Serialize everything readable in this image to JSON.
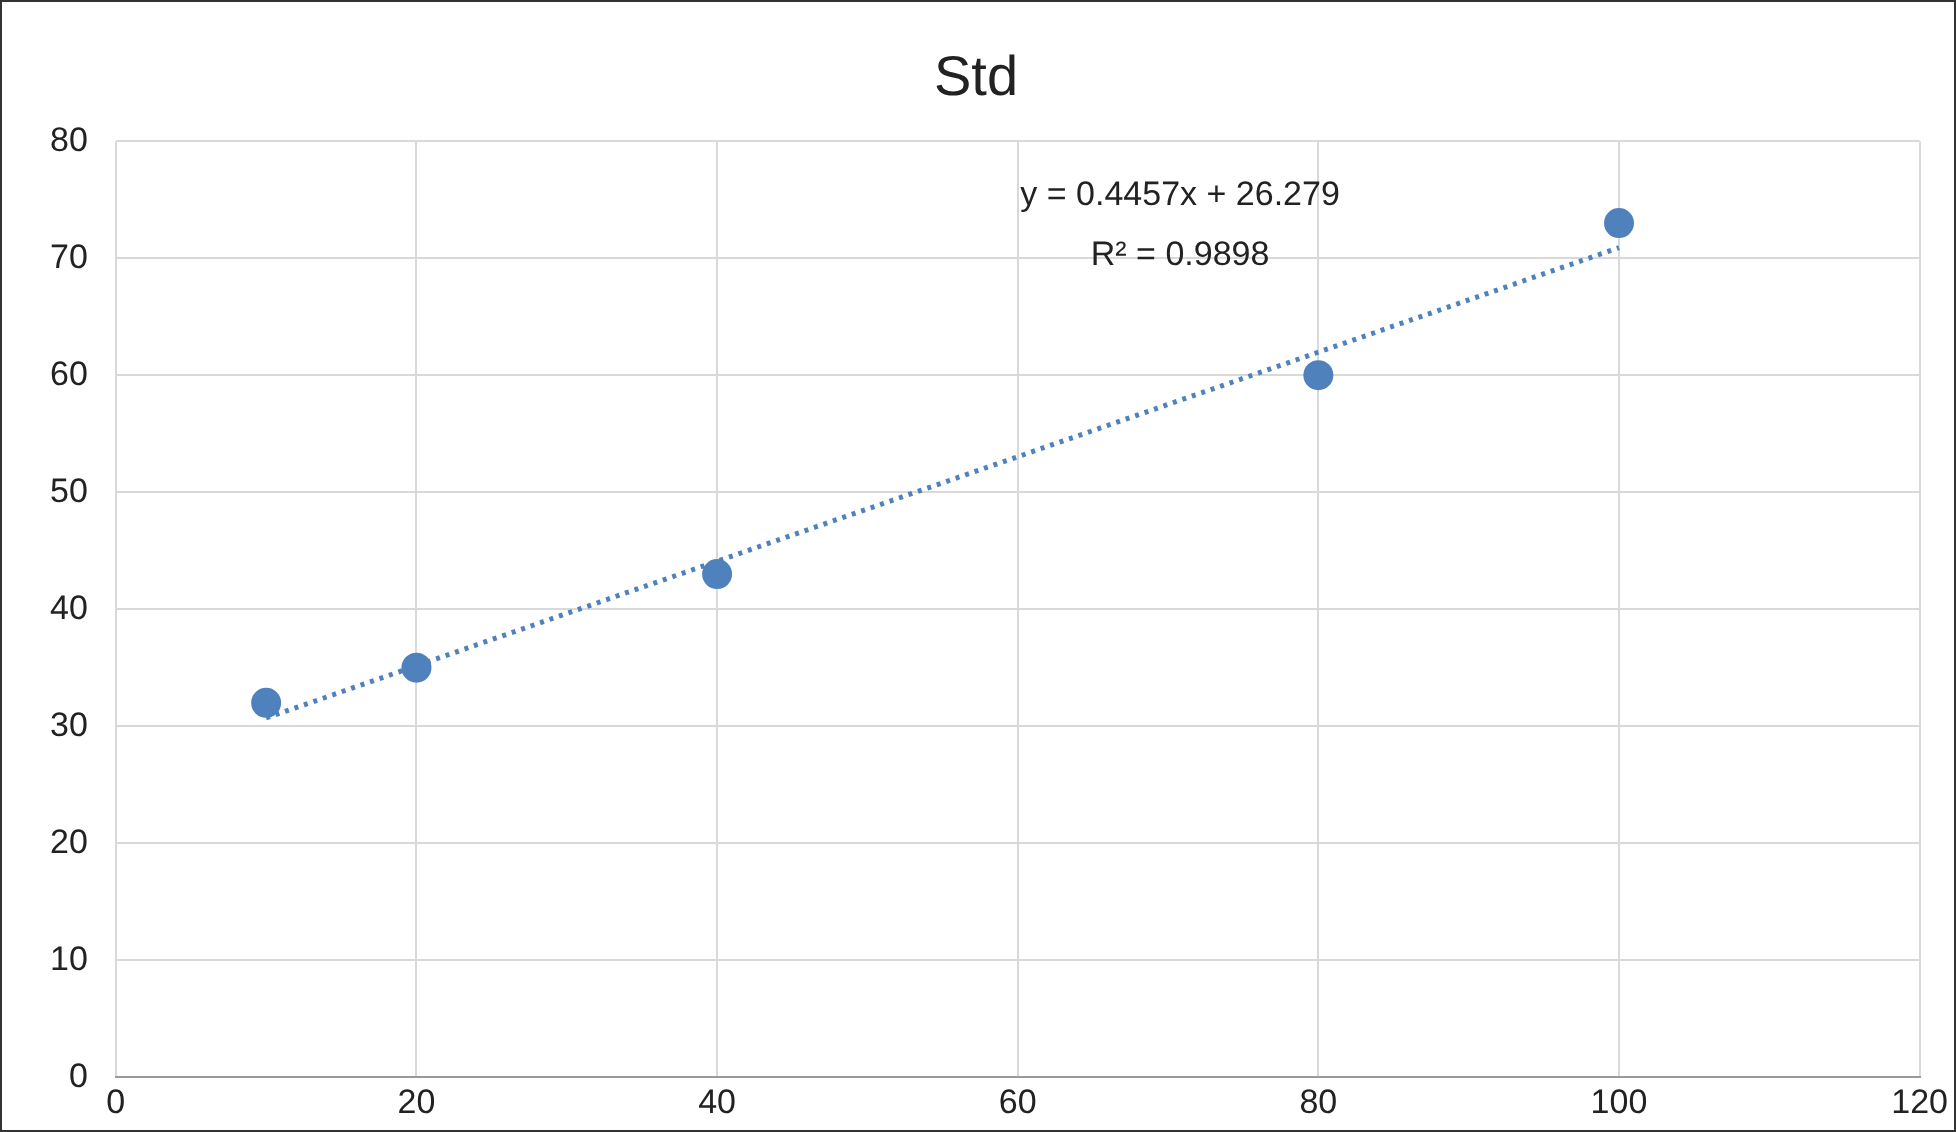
{
  "chart_data": {
    "type": "scatter",
    "title": "Std",
    "series": [
      {
        "type": "scatter",
        "color": "#4f81bd",
        "x": [
          10,
          20,
          40,
          80,
          100
        ],
        "values": [
          32,
          35,
          43,
          60,
          73
        ],
        "marker": "circle"
      },
      {
        "type": "line",
        "color": "#4f81bd",
        "x": [
          10,
          100
        ],
        "values": [
          30.7,
          70.9
        ],
        "marker": "none",
        "line_style": "dotted"
      }
    ],
    "annotations": [
      "y = 0.4457x + 26.279",
      "R² = 0.9898"
    ],
    "xlim": [
      0,
      120
    ],
    "xticks": [
      0,
      20,
      40,
      60,
      80,
      100,
      120
    ],
    "ylim": [
      0,
      80
    ],
    "yticks": [
      0,
      10,
      20,
      30,
      40,
      50,
      60,
      70,
      80
    ],
    "grid": true,
    "legend": false
  }
}
